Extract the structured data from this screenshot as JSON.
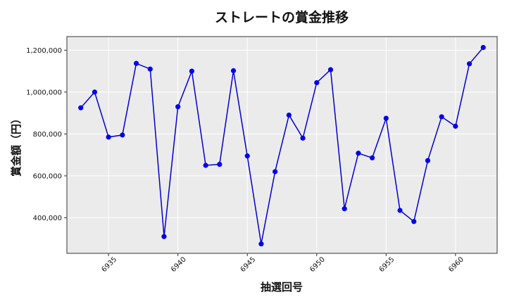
{
  "chart_data": {
    "type": "line",
    "title": "ストレートの賞金推移",
    "xlabel": "抽選回号",
    "ylabel": "賞金額（円）",
    "x_ticks": [
      "6935",
      "6940",
      "6945",
      "6950",
      "6955",
      "6960"
    ],
    "y_ticks": [
      "400,000",
      "600,000",
      "800,000",
      "1,000,000",
      "1,200,000"
    ],
    "xlim": [
      6932,
      6963
    ],
    "ylim": [
      230000,
      1265000
    ],
    "grid": true,
    "series": [
      {
        "color": "#0000cc",
        "marker_color": "#0000ee",
        "x": [
          6933,
          6934,
          6935,
          6936,
          6937,
          6938,
          6939,
          6940,
          6941,
          6942,
          6943,
          6944,
          6945,
          6946,
          6947,
          6948,
          6949,
          6950,
          6951,
          6952,
          6953,
          6954,
          6955,
          6956,
          6957,
          6958,
          6959,
          6960,
          6961,
          6962
        ],
        "y": [
          925000,
          1000000,
          785000,
          795000,
          1137000,
          1110000,
          310000,
          930000,
          1100000,
          650000,
          655000,
          1102000,
          695000,
          275000,
          620000,
          890000,
          780000,
          1045000,
          1107000,
          443000,
          708000,
          686000,
          875000,
          435000,
          382000,
          673000,
          882000,
          837000,
          1135000,
          1213000
        ]
      }
    ]
  }
}
